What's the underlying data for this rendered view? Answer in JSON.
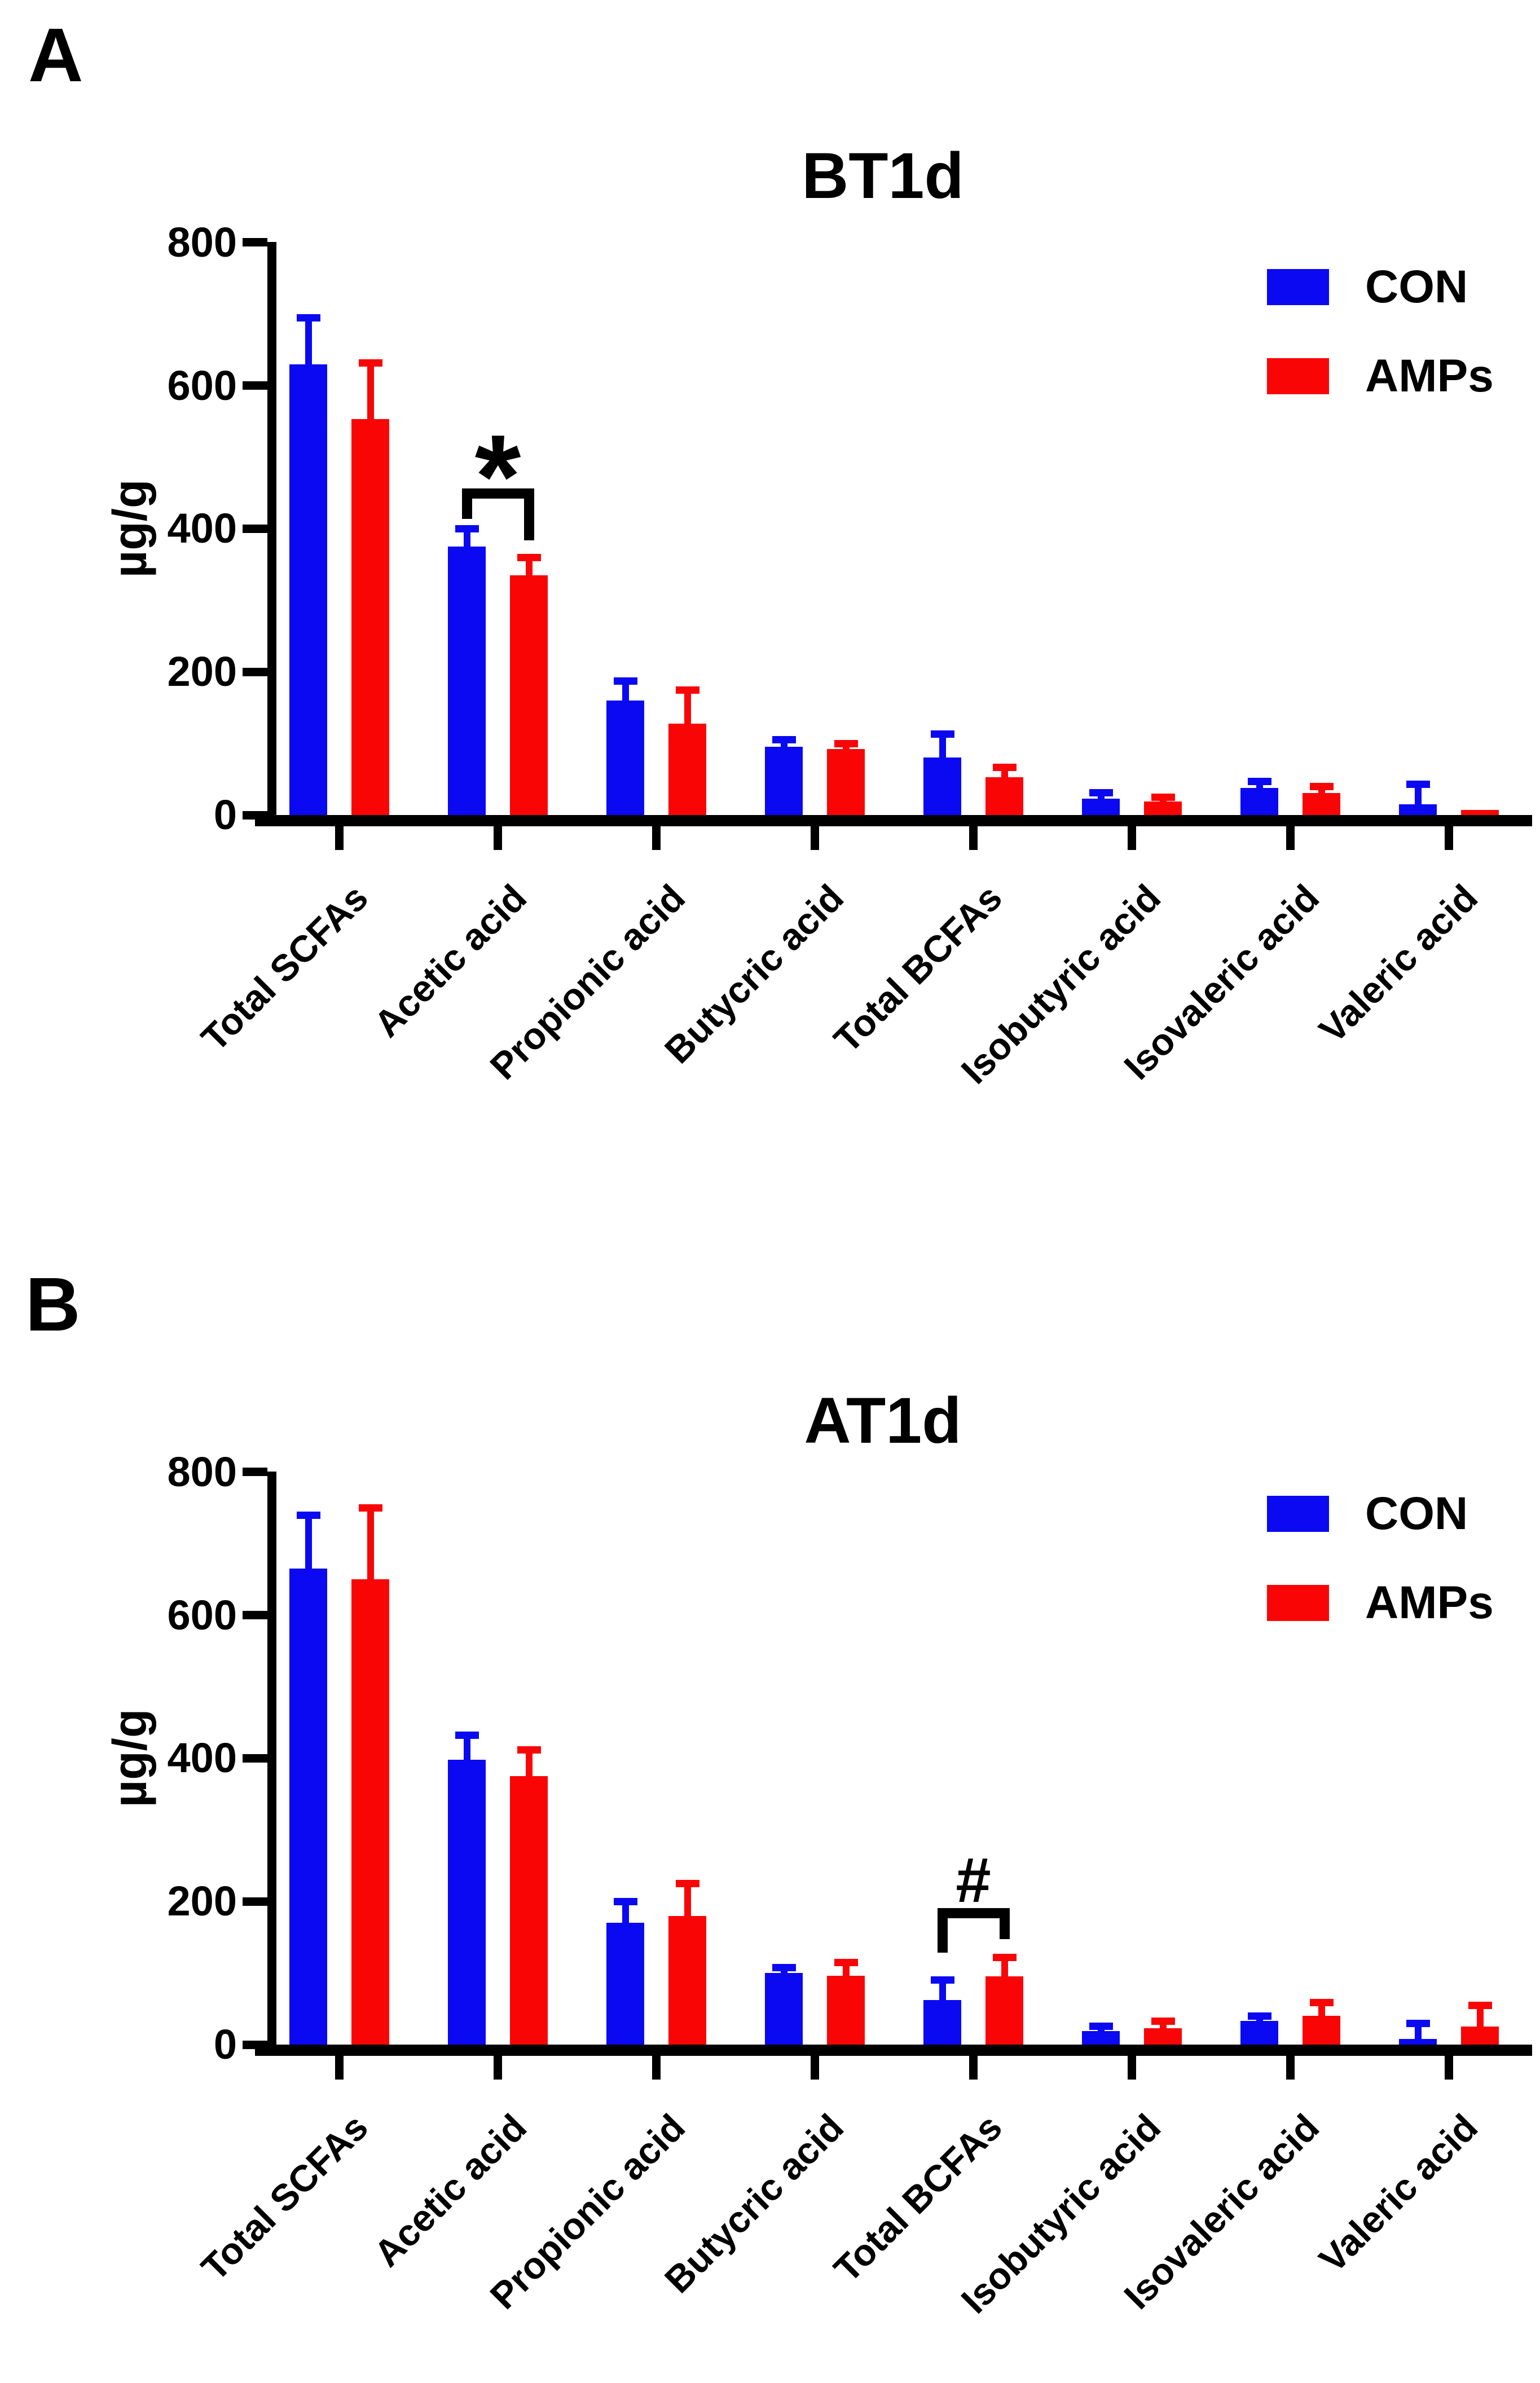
{
  "figure": {
    "description": "Fecal short-chain and branched-chain fatty acid concentrations, CON vs AMPs",
    "unit": "µg/g"
  },
  "legend": {
    "items": [
      "CON",
      "AMPs"
    ]
  },
  "colors": {
    "con_blue": "#0a09f2",
    "amps_red": "#fa0505",
    "axis_black": "#000000",
    "background": "#ffffff"
  },
  "chart_data": [
    {
      "type": "bar",
      "panel_label": "A",
      "title": "BT1d",
      "ylabel": "µg/g",
      "ylim": [
        0,
        800
      ],
      "yticks": [
        0,
        200,
        400,
        600,
        800
      ],
      "grid": false,
      "legend_position": "top-right",
      "categories": [
        "Total SCFAs",
        "Acetic acid",
        "Propionic acid",
        "Butycric acid",
        "Total BCFAs",
        "Isobutyric acid",
        "Isovaleric acid",
        "Valeric acid"
      ],
      "series": [
        {
          "name": "CON",
          "color_key": "con_blue",
          "values": [
            630,
            375,
            160,
            95,
            80,
            23,
            38,
            15
          ],
          "error_top": [
            700,
            405,
            192,
            110,
            118,
            36,
            52,
            48
          ]
        },
        {
          "name": "AMPs",
          "color_key": "amps_red",
          "values": [
            553,
            335,
            128,
            92,
            53,
            19,
            31,
            7
          ],
          "error_top": [
            637,
            365,
            180,
            105,
            72,
            30,
            45,
            null
          ]
        }
      ],
      "significance": {
        "symbol": "*",
        "group": "Acetic acid",
        "group_index": 1
      }
    },
    {
      "type": "bar",
      "panel_label": "B",
      "title": "AT1d",
      "ylabel": "µg/g",
      "ylim": [
        0,
        800
      ],
      "yticks": [
        0,
        200,
        400,
        600,
        800
      ],
      "grid": false,
      "legend_position": "top-right",
      "categories": [
        "Total SCFAs",
        "Acetic acid",
        "Propionic acid",
        "Butycric acid",
        "Total BCFAs",
        "Isobutyric acid",
        "Isovaleric acid",
        "Valeric acid"
      ],
      "series": [
        {
          "name": "CON",
          "color_key": "con_blue",
          "values": [
            665,
            398,
            170,
            100,
            62,
            19,
            33,
            8
          ],
          "error_top": [
            745,
            437,
            205,
            113,
            95,
            31,
            45,
            35
          ]
        },
        {
          "name": "AMPs",
          "color_key": "amps_red",
          "values": [
            650,
            375,
            180,
            96,
            95,
            23,
            40,
            25
          ],
          "error_top": [
            755,
            417,
            230,
            120,
            127,
            38,
            64,
            60
          ]
        }
      ],
      "significance": {
        "symbol": "#",
        "group": "Total BCFAs",
        "group_index": 4
      }
    }
  ]
}
